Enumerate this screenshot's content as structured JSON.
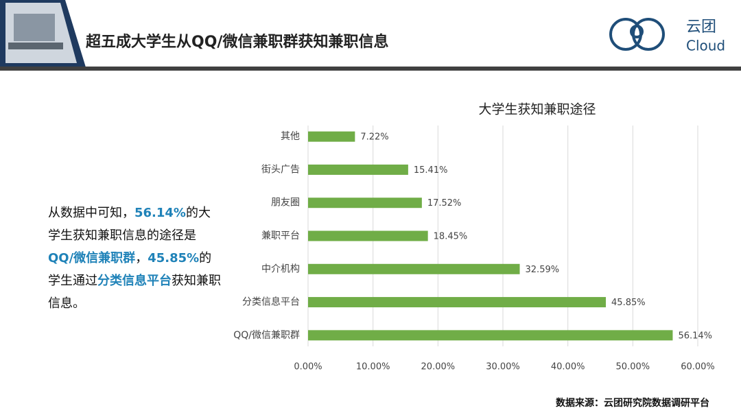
{
  "header": {
    "title": "超五成大学生从QQ/微信兼职群获知兼职信息",
    "logo_text": "云团",
    "logo_sub": "Cloud"
  },
  "note": [
    {
      "text": "从数据中可知，",
      "highlight": false
    },
    {
      "text": "56.14%",
      "highlight": true
    },
    {
      "text": "的大学生获知兼职信息的途径是",
      "highlight": false
    },
    {
      "text": "QQ/微信兼职群",
      "highlight": true
    },
    {
      "text": "，",
      "highlight": false
    },
    {
      "text": "45.85%",
      "highlight": true
    },
    {
      "text": "的学生通过",
      "highlight": false
    },
    {
      "text": "分类信息平台",
      "highlight": true
    },
    {
      "text": "获知兼职信息。",
      "highlight": false
    }
  ],
  "source": "数据来源：云团研究院数据调研平台",
  "chart_data": {
    "type": "barh",
    "title": "大学生获知兼职途径",
    "categories": [
      "其他",
      "街头广告",
      "朋友圈",
      "兼职平台",
      "中介机构",
      "分类信息平台",
      "QQ/微信兼职群"
    ],
    "values": [
      7.22,
      15.41,
      17.52,
      18.45,
      32.59,
      45.85,
      56.14
    ],
    "value_labels": [
      "7.22%",
      "15.41%",
      "17.52%",
      "18.45%",
      "32.59%",
      "45.85%",
      "56.14%"
    ],
    "color": "#70ad47",
    "xlim": [
      0,
      60
    ],
    "xticks": [
      {
        "value": 0,
        "label": "0.00%"
      },
      {
        "value": 10,
        "label": "10.00%"
      },
      {
        "value": 20,
        "label": "20.00%"
      },
      {
        "value": 30,
        "label": "30.00%"
      },
      {
        "value": 40,
        "label": "40.00%"
      },
      {
        "value": 50,
        "label": "50.00%"
      },
      {
        "value": 60,
        "label": "60.00%"
      }
    ],
    "grid": true
  }
}
